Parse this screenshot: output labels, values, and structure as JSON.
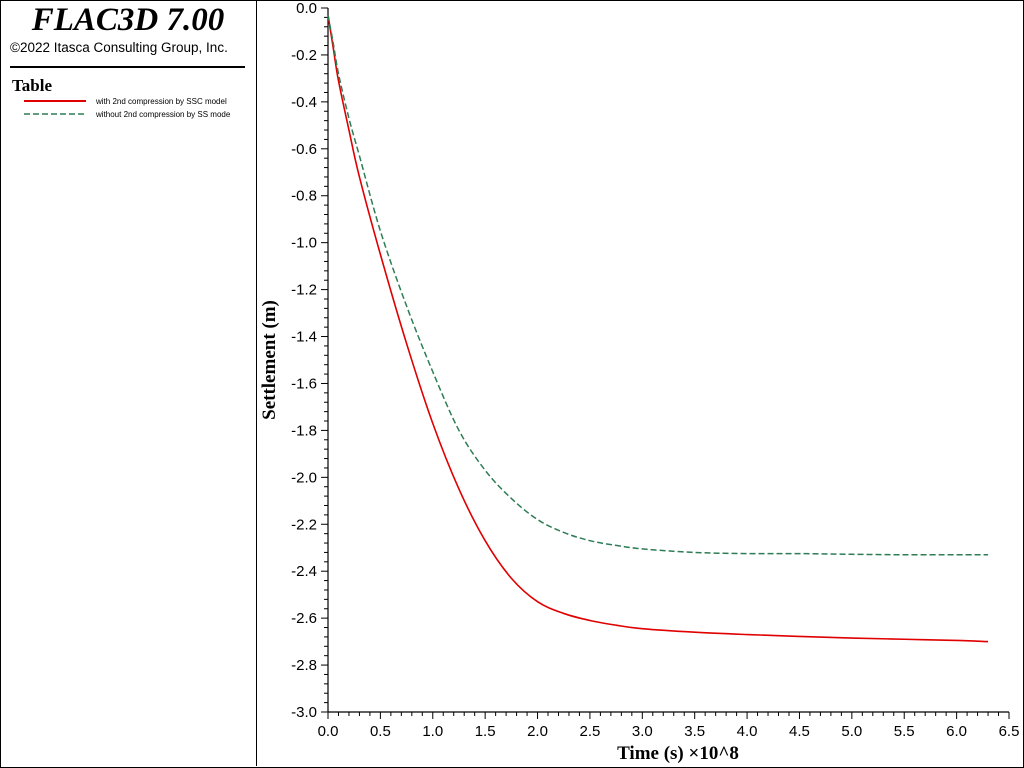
{
  "app": {
    "title": "FLAC3D 7.00",
    "copyright": "©2022 Itasca Consulting Group, Inc."
  },
  "legend": {
    "title": "Table",
    "entries": [
      {
        "label": "with 2nd compression by SSC model",
        "color": "#e00000",
        "style": "solid"
      },
      {
        "label": "without 2nd compression by SS mode",
        "color": "#2e7d55",
        "style": "dashed"
      }
    ]
  },
  "chart_data": {
    "type": "line",
    "xlabel": "Time (s) ×10^8",
    "ylabel": "Settlement (m)",
    "xlim": [
      0.0,
      6.5
    ],
    "ylim": [
      -3.0,
      0.0
    ],
    "x_ticks": [
      "0.0",
      "0.5",
      "1.0",
      "1.5",
      "2.0",
      "2.5",
      "3.0",
      "3.5",
      "4.0",
      "4.5",
      "5.0",
      "5.5",
      "6.0",
      "6.5"
    ],
    "y_ticks": [
      "0.0",
      "-0.2",
      "-0.4",
      "-0.6",
      "-0.8",
      "-1.0",
      "-1.2",
      "-1.4",
      "-1.6",
      "-1.8",
      "-2.0",
      "-2.2",
      "-2.4",
      "-2.6",
      "-2.8",
      "-3.0"
    ],
    "grid": false,
    "series": [
      {
        "name": "with 2nd compression by SSC model",
        "color": "#e00000",
        "style": "solid",
        "x": [
          0.0,
          0.05,
          0.1,
          0.2,
          0.3,
          0.5,
          0.75,
          1.0,
          1.25,
          1.5,
          1.75,
          2.0,
          2.25,
          2.5,
          2.75,
          3.0,
          3.5,
          4.0,
          4.5,
          5.0,
          5.5,
          6.0,
          6.3
        ],
        "y": [
          -0.03,
          -0.17,
          -0.31,
          -0.52,
          -0.72,
          -1.05,
          -1.43,
          -1.77,
          -2.05,
          -2.27,
          -2.43,
          -2.53,
          -2.58,
          -2.61,
          -2.63,
          -2.645,
          -2.66,
          -2.67,
          -2.678,
          -2.685,
          -2.69,
          -2.695,
          -2.7
        ]
      },
      {
        "name": "without 2nd compression by SS mode",
        "color": "#2e7d55",
        "style": "dashed",
        "x": [
          0.0,
          0.05,
          0.1,
          0.2,
          0.3,
          0.5,
          0.75,
          1.0,
          1.25,
          1.5,
          1.75,
          2.0,
          2.25,
          2.5,
          2.75,
          3.0,
          3.5,
          4.0,
          4.5,
          5.0,
          5.5,
          6.0,
          6.3
        ],
        "y": [
          -0.03,
          -0.15,
          -0.28,
          -0.47,
          -0.63,
          -0.95,
          -1.27,
          -1.55,
          -1.8,
          -1.97,
          -2.09,
          -2.18,
          -2.235,
          -2.27,
          -2.29,
          -2.305,
          -2.32,
          -2.325,
          -2.325,
          -2.328,
          -2.33,
          -2.33,
          -2.33
        ]
      }
    ]
  }
}
